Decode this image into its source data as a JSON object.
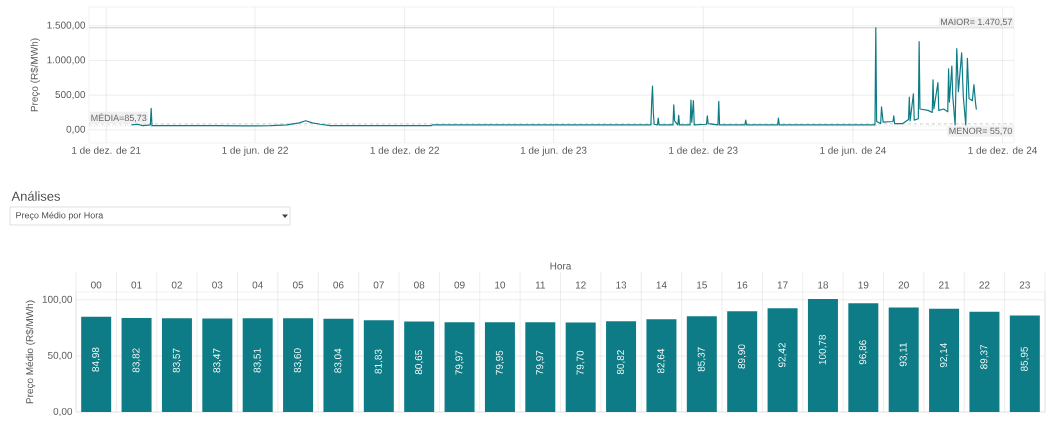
{
  "chart_data": [
    {
      "type": "line",
      "ylabel": "Preço (R$/MWh)",
      "color": "#0e7c86",
      "xlim": [
        "2021-11-10",
        "2024-12-15"
      ],
      "ylim": [
        -190,
        1770
      ],
      "xticks": [
        {
          "value": "2021-12-01",
          "label": "1 de dez. de 21"
        },
        {
          "value": "2022-06-01",
          "label": "1 de jun. de 22"
        },
        {
          "value": "2022-12-01",
          "label": "1 de dez. de 22"
        },
        {
          "value": "2023-06-01",
          "label": "1 de jun. de 23"
        },
        {
          "value": "2023-12-01",
          "label": "1 de dez. de 23"
        },
        {
          "value": "2024-06-01",
          "label": "1 de jun. de 24"
        },
        {
          "value": "2024-12-01",
          "label": "1 de dez. de 24"
        }
      ],
      "yticks": [
        {
          "value": 0,
          "label": "0,00"
        },
        {
          "value": 500,
          "label": "500,00"
        },
        {
          "value": 1000,
          "label": "1.000,00"
        },
        {
          "value": 1500,
          "label": "1.500,00"
        }
      ],
      "grid": true,
      "ref_lines": [
        {
          "axis": "y",
          "value": 85.73,
          "label": "MÉDIA=85,73",
          "color": "#a8a8a8",
          "line_style": "dashed"
        },
        {
          "axis": "y",
          "value": 1470.57,
          "label": "MAIOR= 1.470,57",
          "color": "#a8a8a8",
          "line_style": "solid"
        },
        {
          "axis": "y",
          "value": 55.7,
          "label": "MENOR= 55,70",
          "color": "#a8a8a8",
          "line_style": "dotted"
        }
      ],
      "x": [
        "2022-01-01",
        "2022-01-08",
        "2022-01-15",
        "2022-01-24",
        "2022-01-25",
        "2022-01-26",
        "2022-02-15",
        "2022-03-15",
        "2022-04-15",
        "2022-05-20",
        "2022-06-20",
        "2022-07-10",
        "2022-07-25",
        "2022-08-02",
        "2022-08-10",
        "2022-08-20",
        "2022-09-01",
        "2022-09-15",
        "2022-10-15",
        "2022-12-01",
        "2023-01-02",
        "2023-01-04",
        "2023-03-01",
        "2023-06-01",
        "2023-09-01",
        "2023-09-28",
        "2023-09-29",
        "2023-09-30",
        "2023-10-01",
        "2023-10-02",
        "2023-10-06",
        "2023-10-07",
        "2023-10-08",
        "2023-10-25",
        "2023-10-26",
        "2023-10-27",
        "2023-10-31",
        "2023-11-01",
        "2023-11-02",
        "2023-11-15",
        "2023-11-16",
        "2023-11-17",
        "2023-11-19",
        "2023-11-20",
        "2023-12-05",
        "2023-12-06",
        "2023-12-07",
        "2023-12-19",
        "2023-12-20",
        "2023-12-21",
        "2024-01-21",
        "2024-01-22",
        "2024-01-23",
        "2024-03-01",
        "2024-03-02",
        "2024-03-03",
        "2024-06-28",
        "2024-06-29",
        "2024-06-30",
        "2024-07-05",
        "2024-07-06",
        "2024-07-08",
        "2024-07-20",
        "2024-07-21",
        "2024-07-22",
        "2024-08-01",
        "2024-08-08",
        "2024-08-09",
        "2024-08-10",
        "2024-08-14",
        "2024-08-15",
        "2024-08-20",
        "2024-08-21",
        "2024-08-22",
        "2024-09-01",
        "2024-09-06",
        "2024-09-07",
        "2024-09-08",
        "2024-09-13",
        "2024-09-14",
        "2024-09-20",
        "2024-09-25",
        "2024-09-26",
        "2024-09-27",
        "2024-09-30",
        "2024-10-01",
        "2024-10-04",
        "2024-10-06",
        "2024-10-08",
        "2024-10-12",
        "2024-10-14",
        "2024-10-17",
        "2024-10-19",
        "2024-10-21",
        "2024-10-25",
        "2024-10-27",
        "2024-10-29",
        "2024-10-30"
      ],
      "values": [
        70,
        80,
        60,
        70,
        310,
        60,
        60,
        60,
        60,
        55.7,
        60,
        70,
        100,
        130,
        100,
        80,
        60,
        60,
        60,
        60,
        60,
        70,
        70,
        70,
        70,
        70,
        400,
        630,
        250,
        80,
        70,
        170,
        70,
        70,
        360,
        130,
        70,
        210,
        70,
        70,
        430,
        110,
        420,
        70,
        80,
        200,
        90,
        70,
        410,
        70,
        70,
        140,
        70,
        70,
        170,
        70,
        70,
        1470.57,
        120,
        90,
        330,
        110,
        120,
        200,
        90,
        90,
        150,
        470,
        130,
        520,
        140,
        160,
        1270,
        300,
        280,
        250,
        720,
        300,
        680,
        280,
        300,
        260,
        880,
        400,
        920,
        500,
        70,
        1170,
        550,
        1110,
        480,
        70,
        1030,
        450,
        420,
        650,
        380,
        290
      ]
    },
    {
      "type": "bar",
      "title": "Análises",
      "subtitle": "Preço Médio por Hora",
      "xlabel": "Hora",
      "ylabel": "Preço Médio (R$/MWh)",
      "color": "#0e7c86",
      "categories": [
        "00",
        "01",
        "02",
        "03",
        "04",
        "05",
        "06",
        "07",
        "08",
        "09",
        "10",
        "11",
        "12",
        "13",
        "14",
        "15",
        "16",
        "17",
        "18",
        "19",
        "20",
        "21",
        "22",
        "23"
      ],
      "values": [
        84.98,
        83.82,
        83.57,
        83.47,
        83.51,
        83.6,
        83.04,
        81.83,
        80.65,
        79.97,
        79.95,
        79.97,
        79.7,
        80.82,
        82.64,
        85.37,
        89.9,
        92.42,
        100.78,
        96.86,
        93.11,
        92.14,
        89.37,
        85.95
      ],
      "value_labels": [
        "84,98",
        "83,82",
        "83,57",
        "83,47",
        "83,51",
        "83,60",
        "83,04",
        "81,83",
        "80,65",
        "79,97",
        "79,95",
        "79,97",
        "79,70",
        "80,82",
        "82,64",
        "85,37",
        "89,90",
        "92,42",
        "100,78",
        "96,86",
        "93,11",
        "92,14",
        "89,37",
        "85,95"
      ],
      "ylim": [
        0,
        107
      ],
      "yticks": [
        {
          "value": 0,
          "label": "0,00"
        },
        {
          "value": 50,
          "label": "50,00"
        },
        {
          "value": 100,
          "label": "100,00"
        }
      ],
      "grid": "y"
    }
  ]
}
